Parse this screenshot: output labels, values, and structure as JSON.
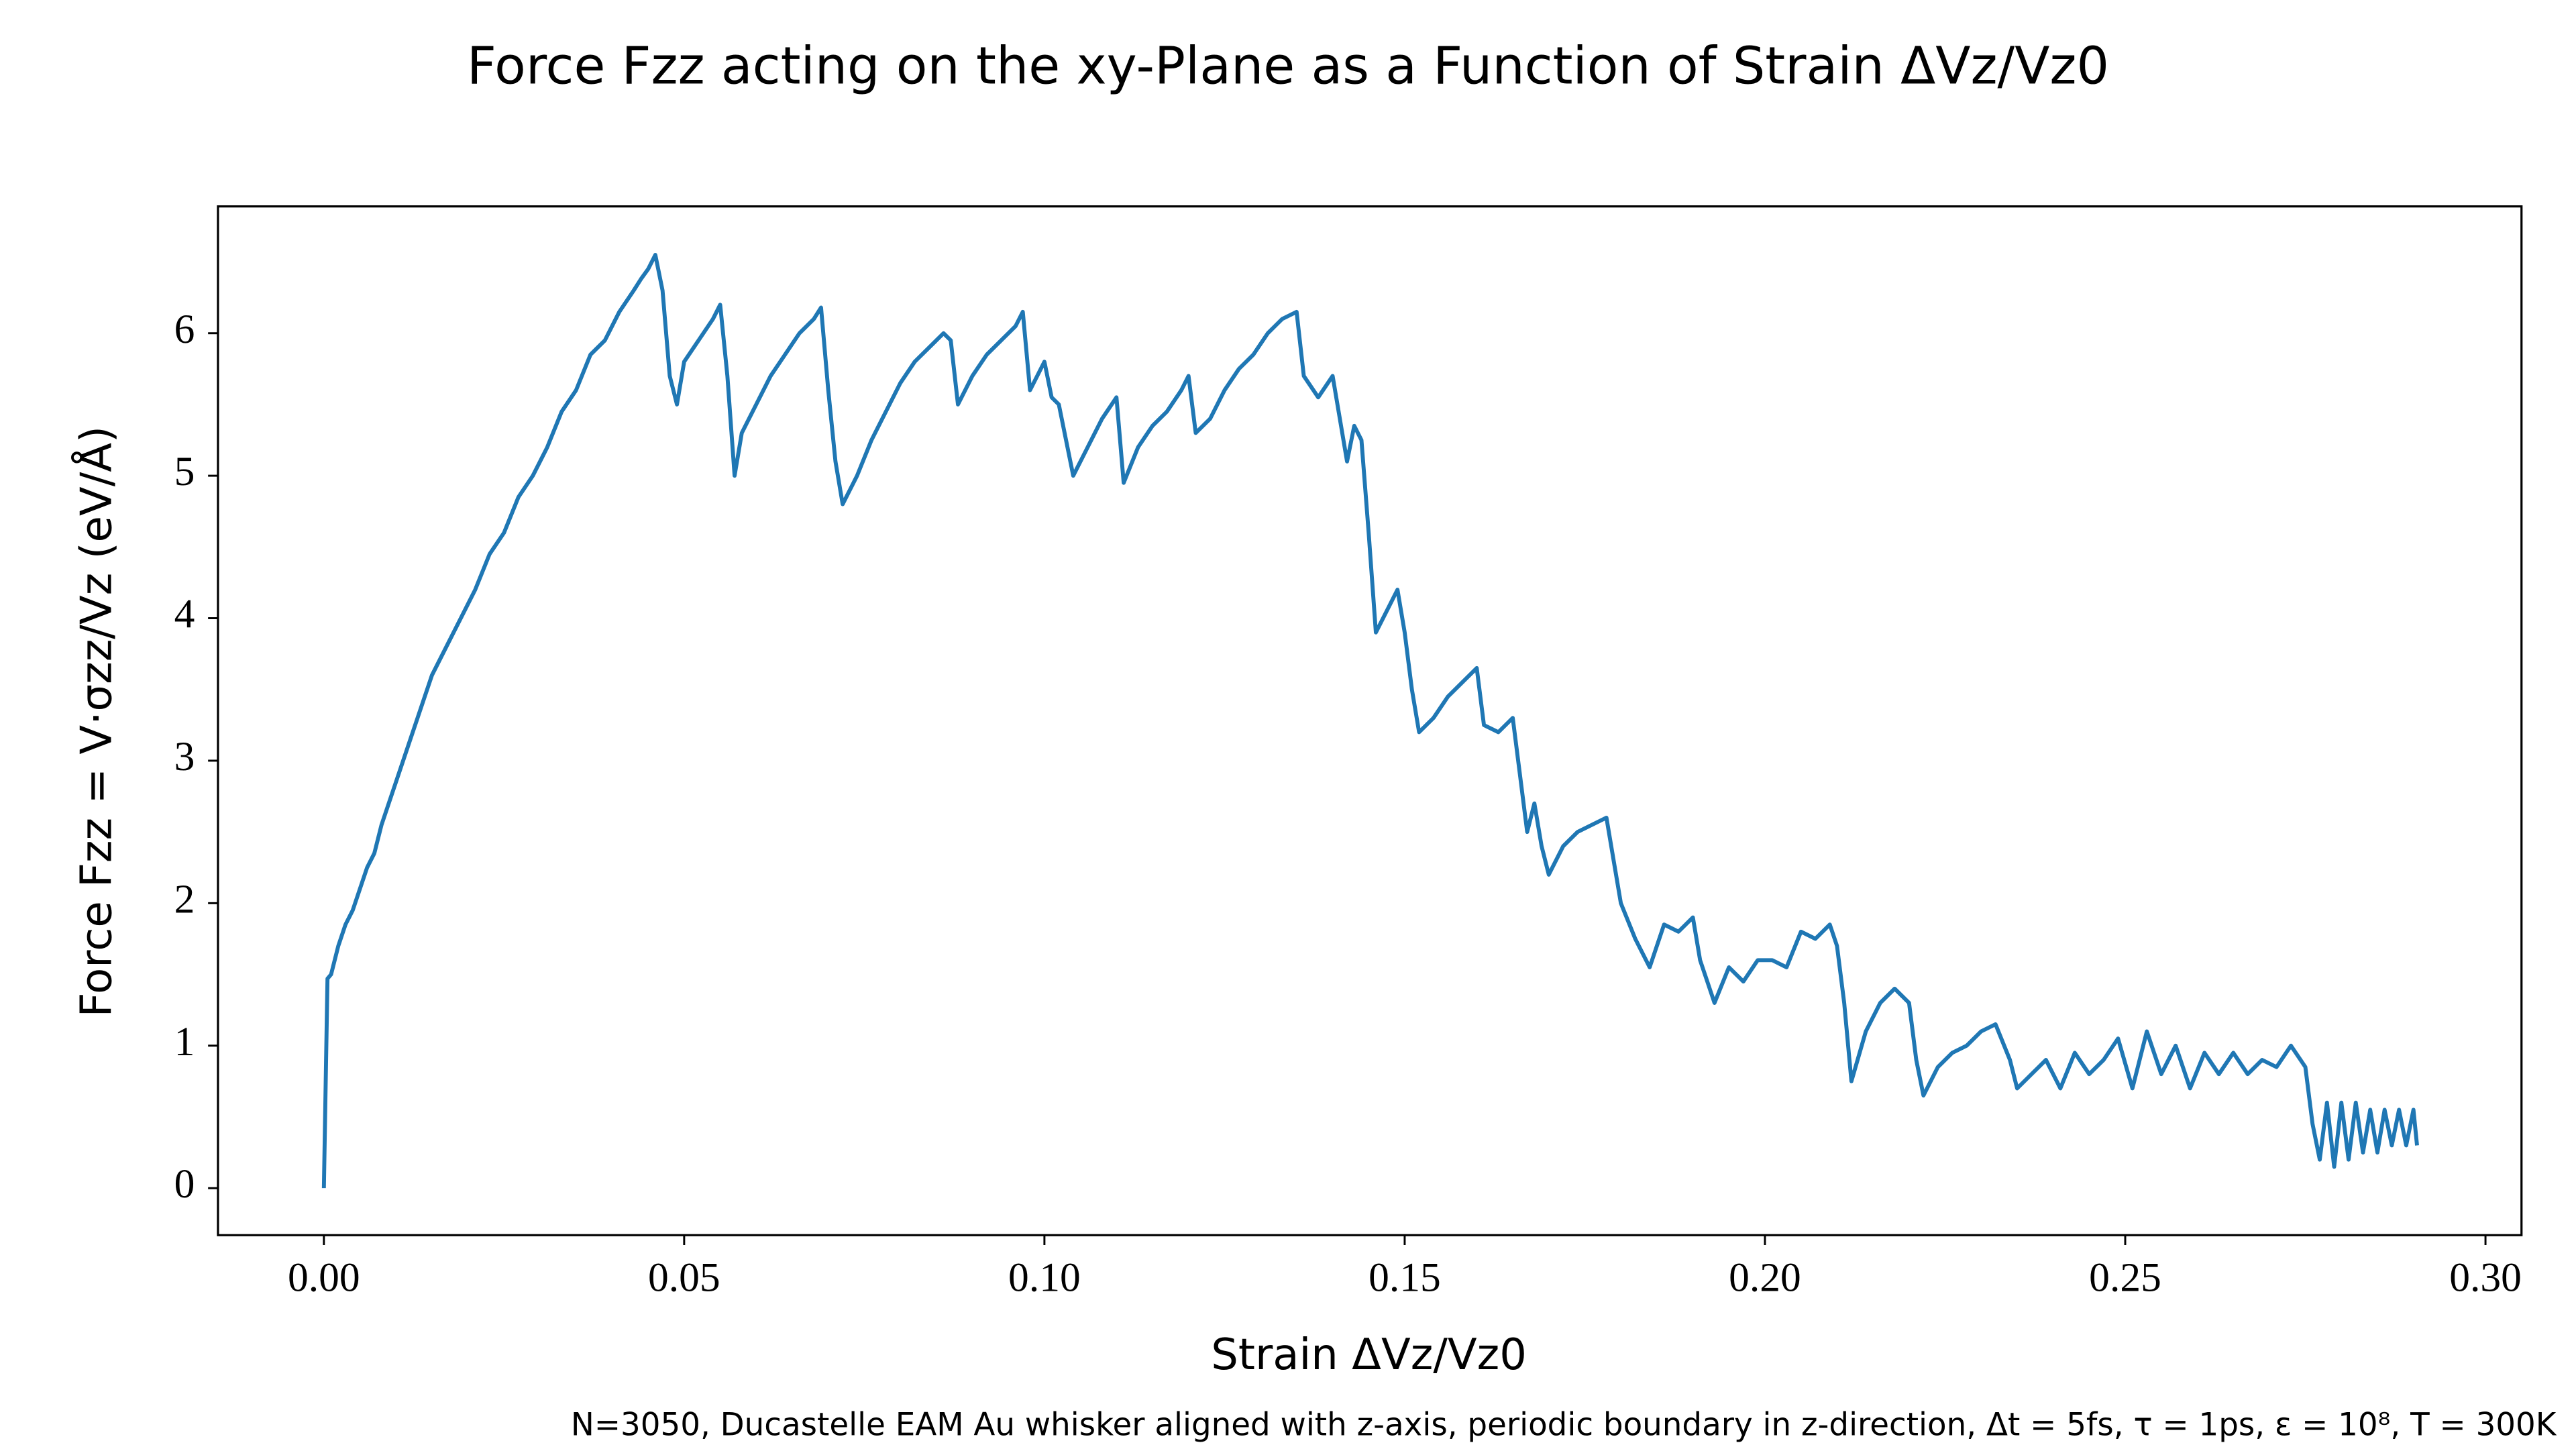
{
  "chart_data": {
    "type": "line",
    "title": "Force Fzz acting on the xy-Plane as a Function of Strain ΔVz/Vz0",
    "x_label": "Strain ΔVz/Vz0",
    "y_label": "Force Fzz = V·σzz/Vz (eV/Å)",
    "annotation": "N=3050, Ducastelle EAM Au whisker aligned with z-axis, periodic boundary in z-direction, Δt = 5fs, τ = 1ps, ε = 10⁸, T = 300K",
    "xlim": [
      -0.0147,
      0.305
    ],
    "ylim": [
      -0.33,
      6.89
    ],
    "xticks": [
      {
        "value": 0,
        "label": "0.00"
      },
      0.05,
      {
        "value": 0.1,
        "label": "0.10"
      },
      0.15,
      {
        "value": 0.2,
        "label": "0.20"
      },
      0.25,
      {
        "value": 0.3,
        "label": "0.30"
      }
    ],
    "yticks": [
      0,
      1,
      2,
      3,
      4,
      5,
      6
    ],
    "grid": false,
    "x": [
      0,
      0.0005,
      0.001,
      0.002,
      0.003,
      0.004,
      0.005,
      0.006,
      0.007,
      0.008,
      0.009,
      0.01,
      0.011,
      0.012,
      0.013,
      0.014,
      0.015,
      0.017,
      0.019,
      0.021,
      0.023,
      0.025,
      0.027,
      0.029,
      0.031,
      0.033,
      0.035,
      0.037,
      0.039,
      0.041,
      0.043,
      0.044,
      0.045,
      0.046,
      0.047,
      0.048,
      0.049,
      0.05,
      0.052,
      0.054,
      0.055,
      0.056,
      0.057,
      0.058,
      0.06,
      0.062,
      0.064,
      0.066,
      0.068,
      0.069,
      0.07,
      0.071,
      0.072,
      0.074,
      0.076,
      0.078,
      0.08,
      0.082,
      0.084,
      0.086,
      0.087,
      0.088,
      0.09,
      0.092,
      0.094,
      0.096,
      0.097,
      0.098,
      0.1,
      0.101,
      0.102,
      0.104,
      0.106,
      0.108,
      0.11,
      0.111,
      0.113,
      0.115,
      0.117,
      0.119,
      0.12,
      0.121,
      0.123,
      0.125,
      0.127,
      0.129,
      0.131,
      0.133,
      0.135,
      0.136,
      0.138,
      0.14,
      0.141,
      0.142,
      0.143,
      0.144,
      0.145,
      0.146,
      0.147,
      0.148,
      0.149,
      0.15,
      0.151,
      0.152,
      0.154,
      0.156,
      0.158,
      0.16,
      0.161,
      0.163,
      0.165,
      0.166,
      0.167,
      0.168,
      0.169,
      0.17,
      0.172,
      0.174,
      0.176,
      0.178,
      0.179,
      0.18,
      0.182,
      0.184,
      0.186,
      0.188,
      0.19,
      0.191,
      0.193,
      0.195,
      0.197,
      0.199,
      0.201,
      0.203,
      0.205,
      0.207,
      0.209,
      0.21,
      0.211,
      0.212,
      0.214,
      0.216,
      0.218,
      0.22,
      0.221,
      0.222,
      0.224,
      0.226,
      0.228,
      0.23,
      0.232,
      0.234,
      0.235,
      0.237,
      0.239,
      0.241,
      0.243,
      0.245,
      0.247,
      0.249,
      0.251,
      0.253,
      0.255,
      0.257,
      0.259,
      0.261,
      0.263,
      0.265,
      0.267,
      0.269,
      0.271,
      0.273,
      0.275,
      0.276,
      0.277,
      0.278,
      0.279,
      0.28,
      0.281,
      0.282,
      0.283,
      0.284,
      0.285,
      0.286,
      0.287,
      0.288,
      0.289,
      0.29,
      0.2905
    ],
    "series": [
      {
        "name": "Fzz",
        "color": "#1f77b4",
        "values": [
          0,
          1.47,
          1.5,
          1.7,
          1.85,
          1.95,
          2.1,
          2.25,
          2.35,
          2.55,
          2.7,
          2.85,
          3.0,
          3.15,
          3.3,
          3.45,
          3.6,
          3.8,
          4.0,
          4.2,
          4.45,
          4.6,
          4.85,
          5.0,
          5.2,
          5.45,
          5.6,
          5.85,
          5.95,
          6.15,
          6.3,
          6.38,
          6.45,
          6.55,
          6.3,
          5.7,
          5.5,
          5.8,
          5.95,
          6.1,
          6.2,
          5.7,
          5.0,
          5.3,
          5.5,
          5.7,
          5.85,
          6.0,
          6.1,
          6.18,
          5.6,
          5.1,
          4.8,
          5.0,
          5.25,
          5.45,
          5.65,
          5.8,
          5.9,
          6.0,
          5.95,
          5.5,
          5.7,
          5.85,
          5.95,
          6.05,
          6.15,
          5.6,
          5.8,
          5.55,
          5.5,
          5.0,
          5.2,
          5.4,
          5.55,
          4.95,
          5.2,
          5.35,
          5.45,
          5.6,
          5.7,
          5.3,
          5.4,
          5.6,
          5.75,
          5.85,
          6.0,
          6.1,
          6.15,
          5.7,
          5.55,
          5.7,
          5.4,
          5.1,
          5.35,
          5.25,
          4.6,
          3.9,
          4.0,
          4.1,
          4.2,
          3.9,
          3.5,
          3.2,
          3.3,
          3.45,
          3.55,
          3.65,
          3.25,
          3.2,
          3.3,
          2.9,
          2.5,
          2.7,
          2.4,
          2.2,
          2.4,
          2.5,
          2.55,
          2.6,
          2.3,
          2.0,
          1.75,
          1.55,
          1.85,
          1.8,
          1.9,
          1.6,
          1.3,
          1.55,
          1.45,
          1.6,
          1.6,
          1.55,
          1.8,
          1.75,
          1.85,
          1.7,
          1.3,
          0.75,
          1.1,
          1.3,
          1.4,
          1.3,
          0.9,
          0.65,
          0.85,
          0.95,
          1.0,
          1.1,
          1.15,
          0.9,
          0.7,
          0.8,
          0.9,
          0.7,
          0.95,
          0.8,
          0.9,
          1.05,
          0.7,
          1.1,
          0.8,
          1.0,
          0.7,
          0.95,
          0.8,
          0.95,
          0.8,
          0.9,
          0.85,
          1.0,
          0.85,
          0.45,
          0.2,
          0.6,
          0.15,
          0.6,
          0.2,
          0.6,
          0.25,
          0.55,
          0.25,
          0.55,
          0.3,
          0.55,
          0.3,
          0.55,
          0.3
        ]
      }
    ]
  }
}
